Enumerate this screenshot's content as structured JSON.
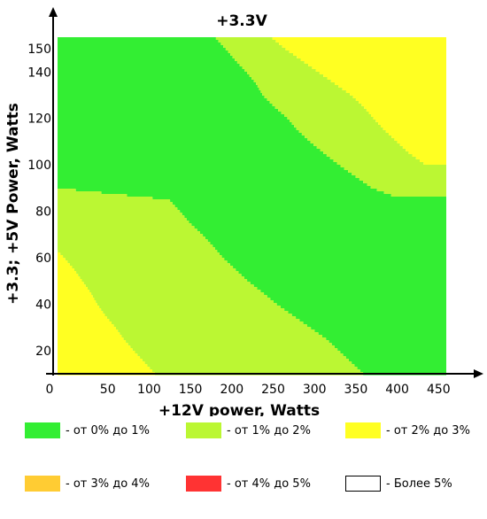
{
  "chart_data": {
    "type": "heatmap",
    "title": "+3.3V",
    "xlabel": "+12V power, Watts",
    "ylabel": "+3.3; +5V Power, Watts",
    "x_ticks": [
      0,
      50,
      100,
      150,
      200,
      250,
      300,
      350,
      400,
      450
    ],
    "y_ticks": [
      20,
      40,
      60,
      80,
      100,
      120,
      140,
      150
    ],
    "xlim": [
      0,
      470
    ],
    "ylim": [
      10,
      155
    ],
    "categories": [
      "- от 0% до 1%",
      "- от 1% до 2%",
      "- от 2% до 3%",
      "- от 3% до 4%",
      "- от 4% до 5%",
      "- Более 5%"
    ],
    "colors": [
      "#33ee33",
      "#bbf733",
      "#ffff22",
      "#ffcc33",
      "#ff3333",
      "#ffffff"
    ],
    "boundaries": [
      {
        "name": "- от 0% до 1% / - от 1% до 2% (upper)",
        "y": [
          155,
          150,
          145,
          140,
          135,
          130,
          125,
          120,
          115,
          110,
          105,
          100,
          95,
          90,
          86,
          86
        ],
        "x": [
          190,
          203,
          215,
          228,
          240,
          248,
          262,
          278,
          290,
          305,
          322,
          340,
          360,
          380,
          410,
          470
        ]
      },
      {
        "name": "- от 1% до 2% / - от 2% до 3% (upper)",
        "y": [
          155,
          150,
          145,
          140,
          135,
          130,
          125,
          120,
          115,
          110,
          105,
          100,
          100
        ],
        "x": [
          258,
          275,
          295,
          315,
          335,
          355,
          370,
          382,
          395,
          410,
          425,
          445,
          470
        ]
      },
      {
        "name": "- от 0% до 1% / - от 1% до 2% (lower)",
        "y": [
          10,
          15,
          20,
          25,
          30,
          35,
          40,
          45,
          50,
          55,
          60,
          65,
          70,
          75,
          80,
          85,
          90
        ],
        "x": [
          370,
          355,
          340,
          325,
          305,
          285,
          265,
          248,
          230,
          215,
          200,
          188,
          175,
          160,
          148,
          135,
          0
        ]
      },
      {
        "name": "- от 1% до 2% / - от 2% до 3% (lower)",
        "y": [
          10,
          15,
          20,
          25,
          30,
          35,
          40,
          45,
          50,
          55,
          60,
          63
        ],
        "x": [
          118,
          105,
          92,
          80,
          70,
          58,
          48,
          40,
          30,
          20,
          8,
          0
        ]
      }
    ]
  },
  "legend": [
    {
      "label": "- от 0% до 1%",
      "color": "#33ee33"
    },
    {
      "label": "- от 1% до 2%",
      "color": "#bbf733"
    },
    {
      "label": "- от 2% до 3%",
      "color": "#ffff22"
    },
    {
      "label": "- от 3% до 4%",
      "color": "#ffcc33"
    },
    {
      "label": "- от 4% до 5%",
      "color": "#ff3333"
    },
    {
      "label": "- Более 5%",
      "color": "#ffffff"
    }
  ]
}
